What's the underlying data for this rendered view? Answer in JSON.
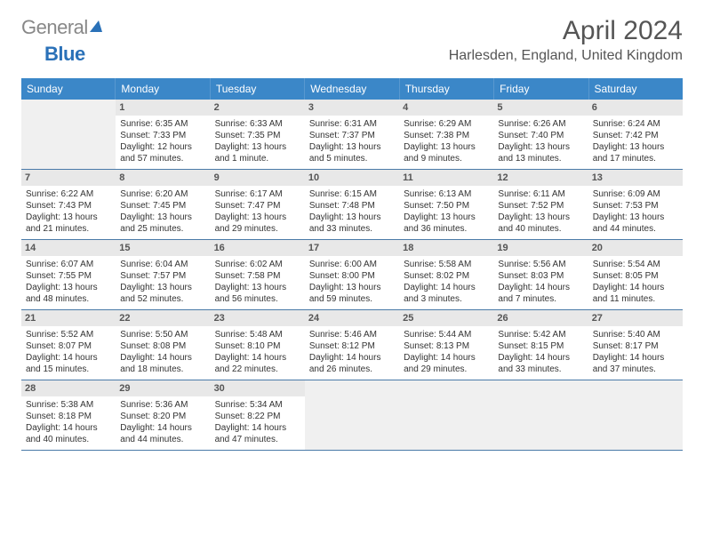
{
  "logo": {
    "part1": "General",
    "part2": "Blue"
  },
  "title": "April 2024",
  "location": "Harlesden, England, United Kingdom",
  "colors": {
    "header_bg": "#3B87C8",
    "accent_blue": "#2a71b8",
    "daynum_bg": "#e8e8e8",
    "empty_bg": "#f0f0f0",
    "rule": "#4a7aa8"
  },
  "day_names": [
    "Sunday",
    "Monday",
    "Tuesday",
    "Wednesday",
    "Thursday",
    "Friday",
    "Saturday"
  ],
  "weeks": [
    [
      {
        "empty": true
      },
      {
        "n": "1",
        "sr": "Sunrise: 6:35 AM",
        "ss": "Sunset: 7:33 PM",
        "d1": "Daylight: 12 hours",
        "d2": "and 57 minutes."
      },
      {
        "n": "2",
        "sr": "Sunrise: 6:33 AM",
        "ss": "Sunset: 7:35 PM",
        "d1": "Daylight: 13 hours",
        "d2": "and 1 minute."
      },
      {
        "n": "3",
        "sr": "Sunrise: 6:31 AM",
        "ss": "Sunset: 7:37 PM",
        "d1": "Daylight: 13 hours",
        "d2": "and 5 minutes."
      },
      {
        "n": "4",
        "sr": "Sunrise: 6:29 AM",
        "ss": "Sunset: 7:38 PM",
        "d1": "Daylight: 13 hours",
        "d2": "and 9 minutes."
      },
      {
        "n": "5",
        "sr": "Sunrise: 6:26 AM",
        "ss": "Sunset: 7:40 PM",
        "d1": "Daylight: 13 hours",
        "d2": "and 13 minutes."
      },
      {
        "n": "6",
        "sr": "Sunrise: 6:24 AM",
        "ss": "Sunset: 7:42 PM",
        "d1": "Daylight: 13 hours",
        "d2": "and 17 minutes."
      }
    ],
    [
      {
        "n": "7",
        "sr": "Sunrise: 6:22 AM",
        "ss": "Sunset: 7:43 PM",
        "d1": "Daylight: 13 hours",
        "d2": "and 21 minutes."
      },
      {
        "n": "8",
        "sr": "Sunrise: 6:20 AM",
        "ss": "Sunset: 7:45 PM",
        "d1": "Daylight: 13 hours",
        "d2": "and 25 minutes."
      },
      {
        "n": "9",
        "sr": "Sunrise: 6:17 AM",
        "ss": "Sunset: 7:47 PM",
        "d1": "Daylight: 13 hours",
        "d2": "and 29 minutes."
      },
      {
        "n": "10",
        "sr": "Sunrise: 6:15 AM",
        "ss": "Sunset: 7:48 PM",
        "d1": "Daylight: 13 hours",
        "d2": "and 33 minutes."
      },
      {
        "n": "11",
        "sr": "Sunrise: 6:13 AM",
        "ss": "Sunset: 7:50 PM",
        "d1": "Daylight: 13 hours",
        "d2": "and 36 minutes."
      },
      {
        "n": "12",
        "sr": "Sunrise: 6:11 AM",
        "ss": "Sunset: 7:52 PM",
        "d1": "Daylight: 13 hours",
        "d2": "and 40 minutes."
      },
      {
        "n": "13",
        "sr": "Sunrise: 6:09 AM",
        "ss": "Sunset: 7:53 PM",
        "d1": "Daylight: 13 hours",
        "d2": "and 44 minutes."
      }
    ],
    [
      {
        "n": "14",
        "sr": "Sunrise: 6:07 AM",
        "ss": "Sunset: 7:55 PM",
        "d1": "Daylight: 13 hours",
        "d2": "and 48 minutes."
      },
      {
        "n": "15",
        "sr": "Sunrise: 6:04 AM",
        "ss": "Sunset: 7:57 PM",
        "d1": "Daylight: 13 hours",
        "d2": "and 52 minutes."
      },
      {
        "n": "16",
        "sr": "Sunrise: 6:02 AM",
        "ss": "Sunset: 7:58 PM",
        "d1": "Daylight: 13 hours",
        "d2": "and 56 minutes."
      },
      {
        "n": "17",
        "sr": "Sunrise: 6:00 AM",
        "ss": "Sunset: 8:00 PM",
        "d1": "Daylight: 13 hours",
        "d2": "and 59 minutes."
      },
      {
        "n": "18",
        "sr": "Sunrise: 5:58 AM",
        "ss": "Sunset: 8:02 PM",
        "d1": "Daylight: 14 hours",
        "d2": "and 3 minutes."
      },
      {
        "n": "19",
        "sr": "Sunrise: 5:56 AM",
        "ss": "Sunset: 8:03 PM",
        "d1": "Daylight: 14 hours",
        "d2": "and 7 minutes."
      },
      {
        "n": "20",
        "sr": "Sunrise: 5:54 AM",
        "ss": "Sunset: 8:05 PM",
        "d1": "Daylight: 14 hours",
        "d2": "and 11 minutes."
      }
    ],
    [
      {
        "n": "21",
        "sr": "Sunrise: 5:52 AM",
        "ss": "Sunset: 8:07 PM",
        "d1": "Daylight: 14 hours",
        "d2": "and 15 minutes."
      },
      {
        "n": "22",
        "sr": "Sunrise: 5:50 AM",
        "ss": "Sunset: 8:08 PM",
        "d1": "Daylight: 14 hours",
        "d2": "and 18 minutes."
      },
      {
        "n": "23",
        "sr": "Sunrise: 5:48 AM",
        "ss": "Sunset: 8:10 PM",
        "d1": "Daylight: 14 hours",
        "d2": "and 22 minutes."
      },
      {
        "n": "24",
        "sr": "Sunrise: 5:46 AM",
        "ss": "Sunset: 8:12 PM",
        "d1": "Daylight: 14 hours",
        "d2": "and 26 minutes."
      },
      {
        "n": "25",
        "sr": "Sunrise: 5:44 AM",
        "ss": "Sunset: 8:13 PM",
        "d1": "Daylight: 14 hours",
        "d2": "and 29 minutes."
      },
      {
        "n": "26",
        "sr": "Sunrise: 5:42 AM",
        "ss": "Sunset: 8:15 PM",
        "d1": "Daylight: 14 hours",
        "d2": "and 33 minutes."
      },
      {
        "n": "27",
        "sr": "Sunrise: 5:40 AM",
        "ss": "Sunset: 8:17 PM",
        "d1": "Daylight: 14 hours",
        "d2": "and 37 minutes."
      }
    ],
    [
      {
        "n": "28",
        "sr": "Sunrise: 5:38 AM",
        "ss": "Sunset: 8:18 PM",
        "d1": "Daylight: 14 hours",
        "d2": "and 40 minutes."
      },
      {
        "n": "29",
        "sr": "Sunrise: 5:36 AM",
        "ss": "Sunset: 8:20 PM",
        "d1": "Daylight: 14 hours",
        "d2": "and 44 minutes."
      },
      {
        "n": "30",
        "sr": "Sunrise: 5:34 AM",
        "ss": "Sunset: 8:22 PM",
        "d1": "Daylight: 14 hours",
        "d2": "and 47 minutes."
      },
      {
        "empty": true
      },
      {
        "empty": true
      },
      {
        "empty": true
      },
      {
        "empty": true
      }
    ]
  ]
}
